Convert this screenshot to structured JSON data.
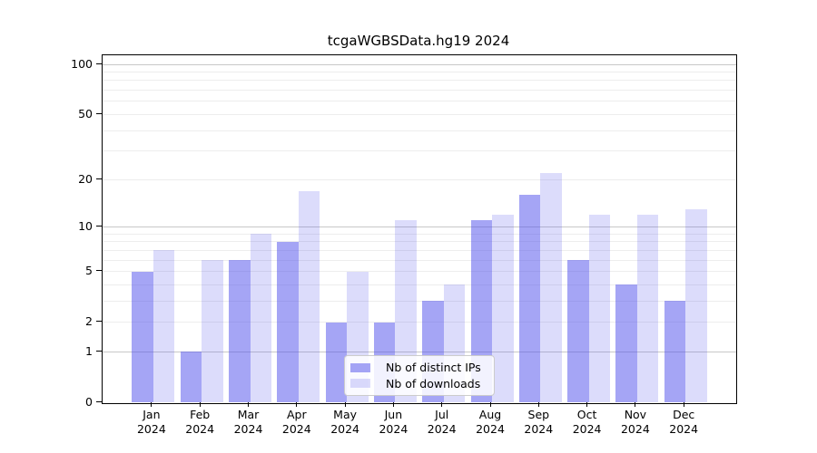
{
  "chart_data": {
    "type": "bar",
    "title": "tcgaWGBSData.hg19 2024",
    "xlabel": "",
    "ylabel": "",
    "months": [
      "Jan",
      "Feb",
      "Mar",
      "Apr",
      "May",
      "Jun",
      "Jul",
      "Aug",
      "Sep",
      "Oct",
      "Nov",
      "Dec"
    ],
    "year": "2024",
    "categories": [
      "Jan 2024",
      "Feb 2024",
      "Mar 2024",
      "Apr 2024",
      "May 2024",
      "Jun 2024",
      "Jul 2024",
      "Aug 2024",
      "Sep 2024",
      "Oct 2024",
      "Nov 2024",
      "Dec 2024"
    ],
    "series": [
      {
        "name": "Nb of distinct IPs",
        "color": "rgba(82,82,235,0.52)",
        "values": [
          5,
          1,
          6,
          8,
          2,
          2,
          3,
          11,
          16,
          6,
          4,
          3
        ]
      },
      {
        "name": "Nb of downloads",
        "color": "rgba(82,82,235,0.20)",
        "values": [
          7,
          6,
          9,
          17,
          5,
          11,
          4,
          12,
          22,
          12,
          12,
          13
        ]
      }
    ],
    "y_ticks": [
      0,
      1,
      2,
      5,
      10,
      20,
      50,
      100
    ],
    "y_scale": "log10(1+v)",
    "ylim": [
      0,
      113
    ],
    "grid": {
      "major_values": [
        1,
        10,
        100
      ],
      "minor_values": [
        2,
        3,
        4,
        5,
        6,
        7,
        8,
        9,
        20,
        30,
        40,
        50,
        60,
        70,
        80,
        90
      ],
      "major_color": "#c8c8c8",
      "minor_color": "#ededed"
    },
    "legend_position": "lower center",
    "axis_color": "#000000",
    "background_color": "#ffffff"
  }
}
